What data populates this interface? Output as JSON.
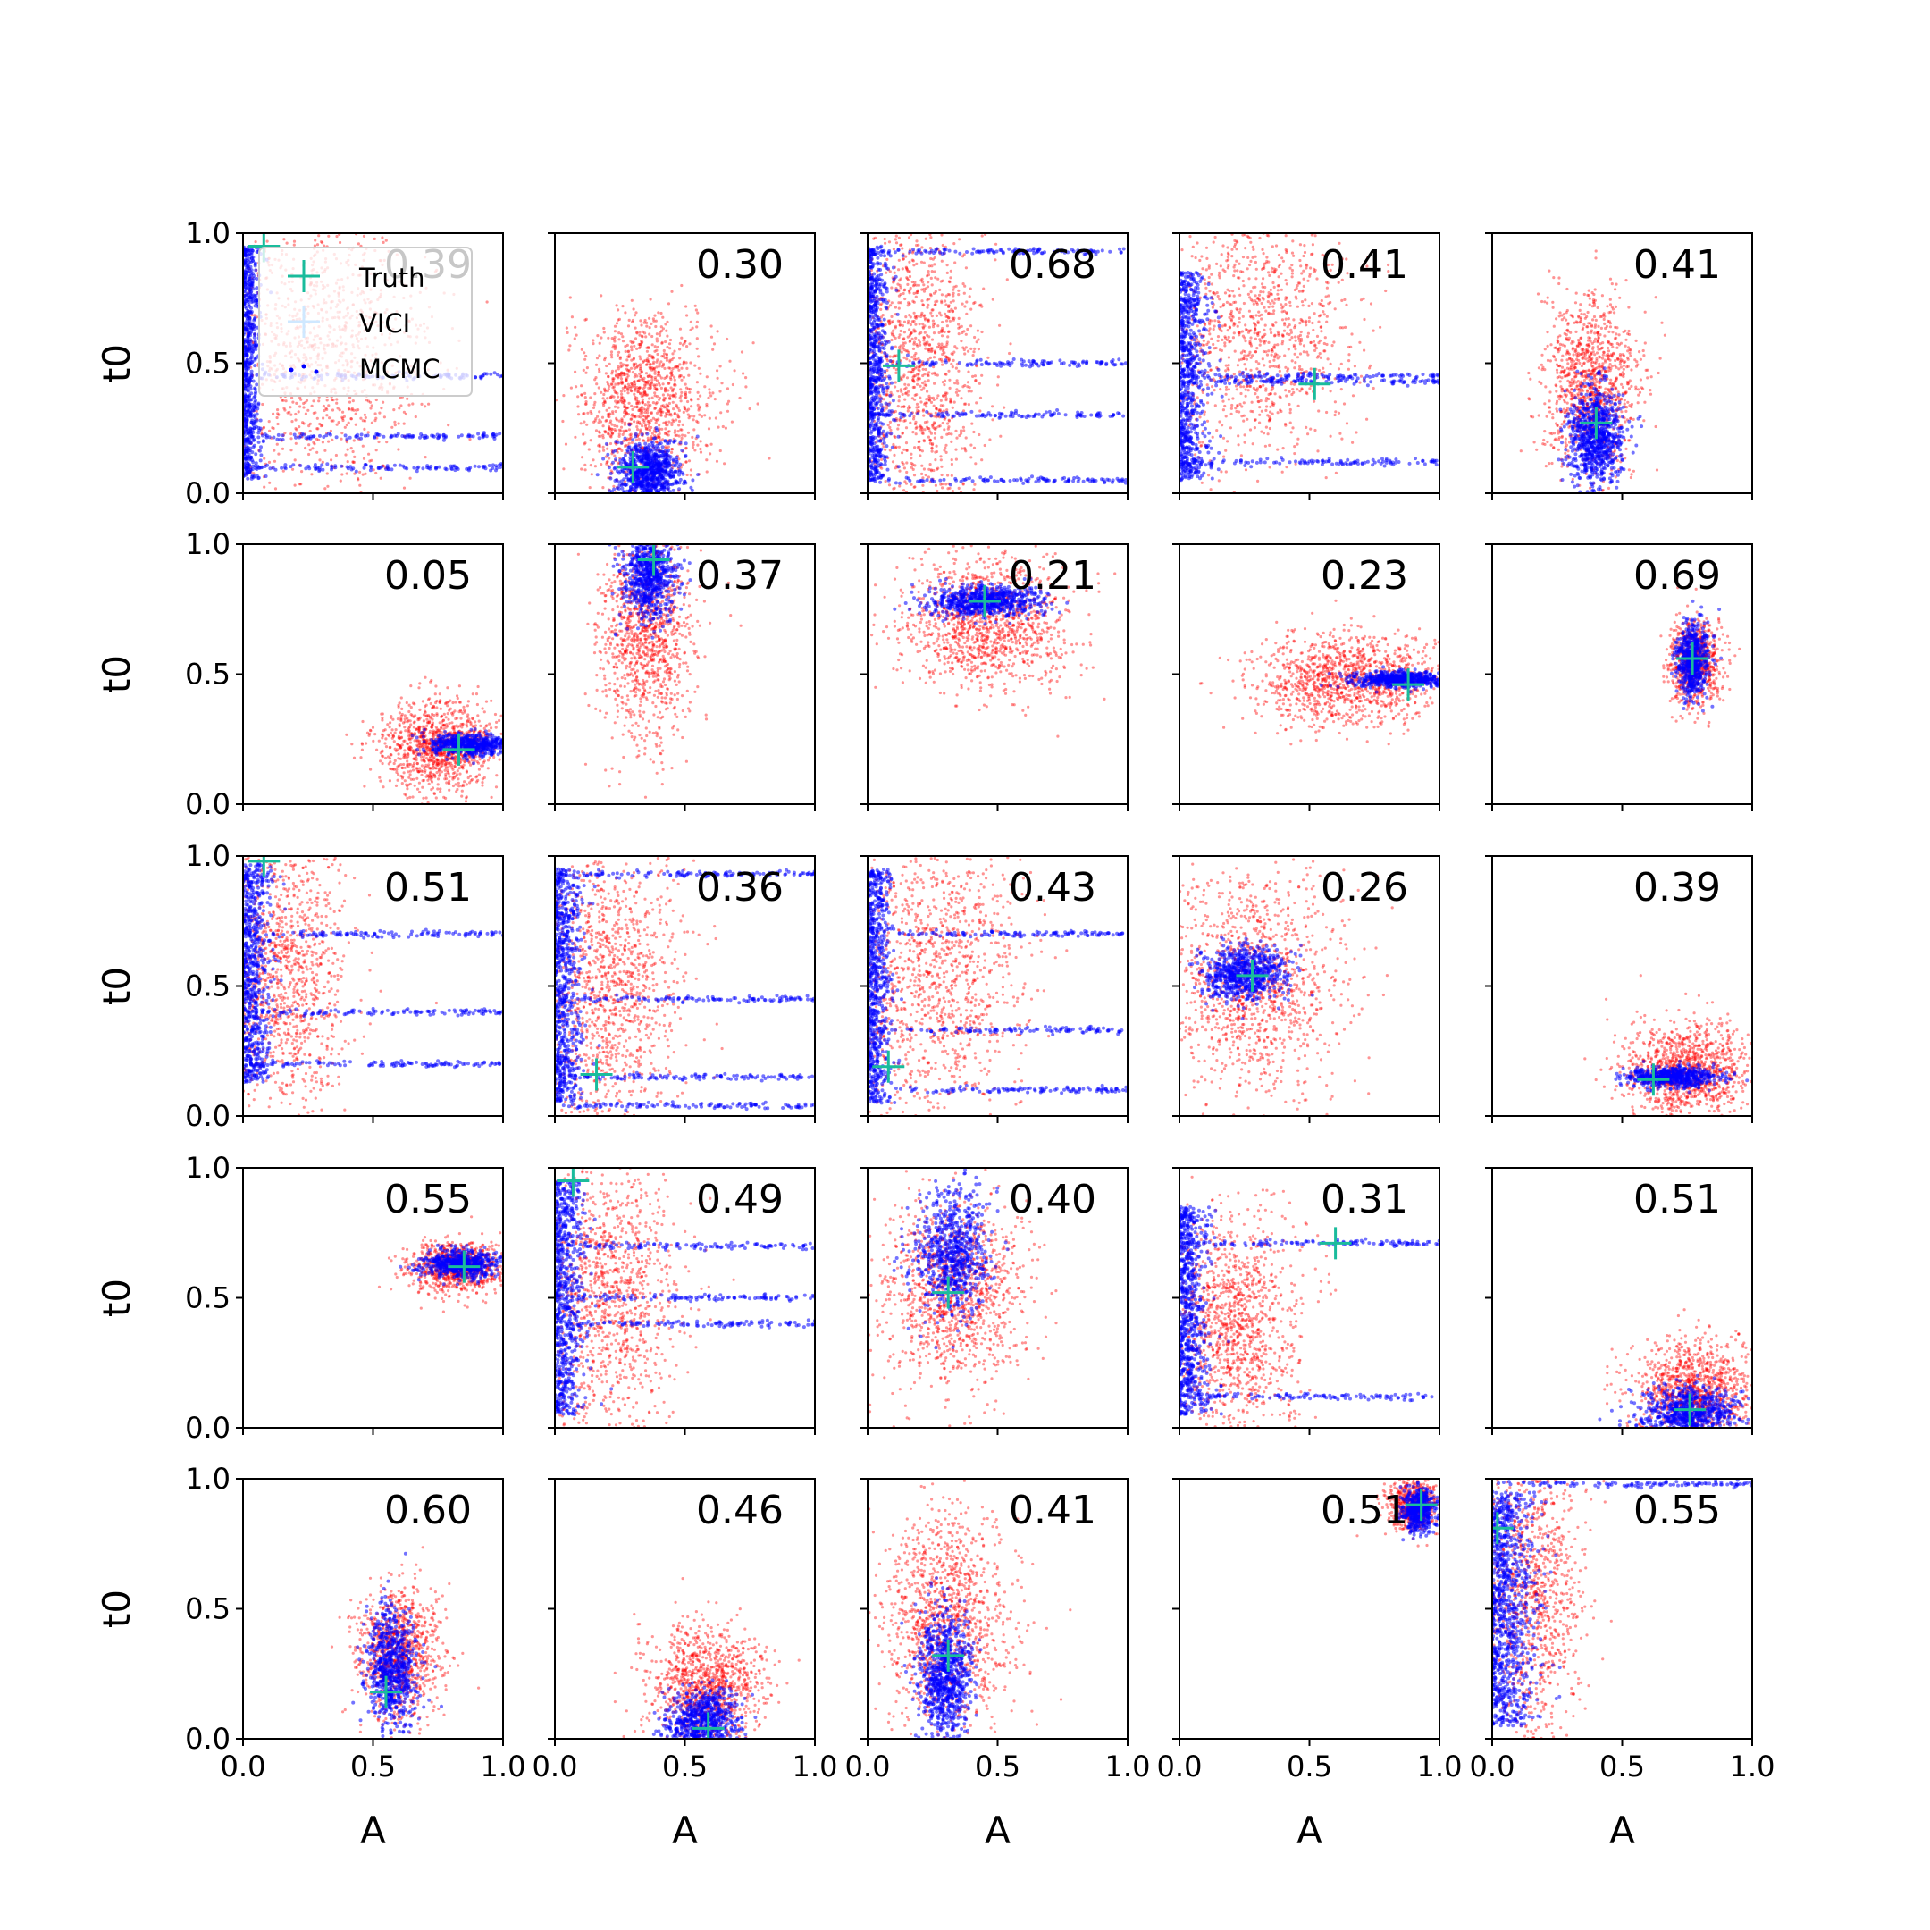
{
  "figure": {
    "rows": 5,
    "cols": 5,
    "xlabel": "A",
    "ylabel": "t0",
    "xlim": [
      0.0,
      1.0
    ],
    "ylim": [
      0.0,
      1.0
    ],
    "xticks": [
      0.0,
      0.5,
      1.0
    ],
    "yticks": [
      0.0,
      0.5,
      1.0
    ],
    "xtick_labels": [
      "0.0",
      "0.5",
      "1.0"
    ],
    "ytick_labels": [
      "0.0",
      "0.5",
      "1.0"
    ],
    "colors": {
      "vici": "#ff0000",
      "mcmc": "#0000ff",
      "truth": "#1abc9c",
      "vici_legend": "#cfe8ff"
    },
    "legend": {
      "location": "top-left of first panel",
      "entries": [
        {
          "label": "Truth",
          "marker": "plus",
          "color": "#1abc9c"
        },
        {
          "label": "VICI",
          "marker": "plus",
          "color": "#cfe8ff"
        },
        {
          "label": "MCMC",
          "marker": "dots",
          "color": "#0000ff"
        }
      ]
    }
  },
  "chart_data": [
    {
      "type": "scatter",
      "overlap": "0.39",
      "truth": [
        0.08,
        0.95
      ],
      "vici": {
        "shape": "gauss",
        "cx": 0.3,
        "cy": 0.55,
        "sx": 0.2,
        "sy": 0.28,
        "n": 1100
      },
      "mcmc": {
        "shape": "strip",
        "cx": 0.04,
        "cy": 0.5,
        "sx": 0.03,
        "sy": 0.45,
        "n": 700,
        "lines": [
          0.1,
          0.45,
          0.22
        ]
      }
    },
    {
      "type": "scatter",
      "overlap": "0.30",
      "truth": [
        0.3,
        0.1
      ],
      "vici": {
        "shape": "gauss",
        "cx": 0.35,
        "cy": 0.35,
        "sx": 0.13,
        "sy": 0.17,
        "n": 1200
      },
      "mcmc": {
        "shape": "gauss",
        "cx": 0.36,
        "cy": 0.08,
        "sx": 0.06,
        "sy": 0.06,
        "n": 800
      }
    },
    {
      "type": "scatter",
      "overlap": "0.68",
      "truth": [
        0.12,
        0.49
      ],
      "vici": {
        "shape": "gauss",
        "cx": 0.2,
        "cy": 0.5,
        "sx": 0.12,
        "sy": 0.32,
        "n": 1200
      },
      "mcmc": {
        "shape": "strip",
        "cx": 0.05,
        "cy": 0.5,
        "sx": 0.04,
        "sy": 0.45,
        "n": 700,
        "lines": [
          0.5,
          0.93,
          0.3,
          0.05
        ]
      }
    },
    {
      "type": "scatter",
      "overlap": "0.41",
      "truth": [
        0.52,
        0.42
      ],
      "vici": {
        "shape": "gauss",
        "cx": 0.3,
        "cy": 0.62,
        "sx": 0.18,
        "sy": 0.25,
        "n": 1100
      },
      "mcmc": {
        "shape": "strip",
        "cx": 0.07,
        "cy": 0.45,
        "sx": 0.05,
        "sy": 0.4,
        "n": 700,
        "lines": [
          0.45,
          0.43,
          0.12
        ]
      }
    },
    {
      "type": "scatter",
      "overlap": "0.41",
      "truth": [
        0.4,
        0.27
      ],
      "vici": {
        "shape": "gauss",
        "cx": 0.38,
        "cy": 0.42,
        "sx": 0.09,
        "sy": 0.17,
        "n": 1100
      },
      "mcmc": {
        "shape": "gauss",
        "cx": 0.4,
        "cy": 0.22,
        "sx": 0.05,
        "sy": 0.1,
        "n": 800
      }
    },
    {
      "type": "scatter",
      "overlap": "0.05",
      "truth": [
        0.83,
        0.21
      ],
      "vici": {
        "shape": "gauss",
        "cx": 0.75,
        "cy": 0.22,
        "sx": 0.11,
        "sy": 0.09,
        "n": 1100
      },
      "mcmc": {
        "shape": "gauss",
        "cx": 0.88,
        "cy": 0.23,
        "sx": 0.08,
        "sy": 0.02,
        "n": 600
      }
    },
    {
      "type": "scatter",
      "overlap": "0.37",
      "truth": [
        0.38,
        0.94
      ],
      "vici": {
        "shape": "gauss",
        "cx": 0.35,
        "cy": 0.65,
        "sx": 0.09,
        "sy": 0.2,
        "n": 1100
      },
      "mcmc": {
        "shape": "gauss",
        "cx": 0.36,
        "cy": 0.88,
        "sx": 0.05,
        "sy": 0.09,
        "n": 700
      }
    },
    {
      "type": "scatter",
      "overlap": "0.21",
      "truth": [
        0.45,
        0.78
      ],
      "vici": {
        "shape": "gauss",
        "cx": 0.45,
        "cy": 0.7,
        "sx": 0.16,
        "sy": 0.13,
        "n": 1200
      },
      "mcmc": {
        "shape": "gauss",
        "cx": 0.45,
        "cy": 0.78,
        "sx": 0.11,
        "sy": 0.03,
        "n": 700
      }
    },
    {
      "type": "scatter",
      "overlap": "0.23",
      "truth": [
        0.88,
        0.46
      ],
      "vici": {
        "shape": "gauss",
        "cx": 0.65,
        "cy": 0.48,
        "sx": 0.18,
        "sy": 0.09,
        "n": 1200
      },
      "mcmc": {
        "shape": "gauss",
        "cx": 0.85,
        "cy": 0.48,
        "sx": 0.09,
        "sy": 0.015,
        "n": 600
      }
    },
    {
      "type": "scatter",
      "overlap": "0.69",
      "truth": [
        0.77,
        0.56
      ],
      "vici": {
        "shape": "gauss",
        "cx": 0.78,
        "cy": 0.54,
        "sx": 0.05,
        "sy": 0.08,
        "n": 800
      },
      "mcmc": {
        "shape": "gauss",
        "cx": 0.77,
        "cy": 0.55,
        "sx": 0.03,
        "sy": 0.07,
        "n": 600
      }
    },
    {
      "type": "scatter",
      "overlap": "0.51",
      "truth": [
        0.08,
        0.98
      ],
      "vici": {
        "shape": "gauss",
        "cx": 0.15,
        "cy": 0.55,
        "sx": 0.13,
        "sy": 0.28,
        "n": 1200
      },
      "mcmc": {
        "shape": "strip",
        "cx": 0.05,
        "cy": 0.55,
        "sx": 0.05,
        "sy": 0.42,
        "n": 700,
        "lines": [
          0.4,
          0.7,
          0.2
        ]
      }
    },
    {
      "type": "scatter",
      "overlap": "0.36",
      "truth": [
        0.16,
        0.16
      ],
      "vici": {
        "shape": "gauss",
        "cx": 0.2,
        "cy": 0.5,
        "sx": 0.14,
        "sy": 0.3,
        "n": 1200
      },
      "mcmc": {
        "shape": "strip",
        "cx": 0.05,
        "cy": 0.5,
        "sx": 0.05,
        "sy": 0.45,
        "n": 700,
        "lines": [
          0.04,
          0.45,
          0.15,
          0.93
        ]
      }
    },
    {
      "type": "scatter",
      "overlap": "0.43",
      "truth": [
        0.08,
        0.19
      ],
      "vici": {
        "shape": "gauss",
        "cx": 0.25,
        "cy": 0.55,
        "sx": 0.18,
        "sy": 0.28,
        "n": 1200
      },
      "mcmc": {
        "shape": "strip",
        "cx": 0.05,
        "cy": 0.5,
        "sx": 0.04,
        "sy": 0.45,
        "n": 700,
        "lines": [
          0.33,
          0.7,
          0.1
        ]
      }
    },
    {
      "type": "scatter",
      "overlap": "0.26",
      "truth": [
        0.28,
        0.54
      ],
      "vici": {
        "shape": "gauss",
        "cx": 0.28,
        "cy": 0.52,
        "sx": 0.17,
        "sy": 0.22,
        "n": 1200
      },
      "mcmc": {
        "shape": "gauss",
        "cx": 0.25,
        "cy": 0.55,
        "sx": 0.08,
        "sy": 0.05,
        "n": 700
      }
    },
    {
      "type": "scatter",
      "overlap": "0.39",
      "truth": [
        0.62,
        0.14
      ],
      "vici": {
        "shape": "gauss",
        "cx": 0.75,
        "cy": 0.18,
        "sx": 0.12,
        "sy": 0.09,
        "n": 1100
      },
      "mcmc": {
        "shape": "gauss",
        "cx": 0.7,
        "cy": 0.15,
        "sx": 0.08,
        "sy": 0.02,
        "n": 600
      }
    },
    {
      "type": "scatter",
      "overlap": "0.55",
      "truth": [
        0.85,
        0.62
      ],
      "vici": {
        "shape": "gauss",
        "cx": 0.82,
        "cy": 0.62,
        "sx": 0.09,
        "sy": 0.05,
        "n": 900
      },
      "mcmc": {
        "shape": "gauss",
        "cx": 0.84,
        "cy": 0.63,
        "sx": 0.07,
        "sy": 0.025,
        "n": 600
      }
    },
    {
      "type": "scatter",
      "overlap": "0.49",
      "truth": [
        0.07,
        0.95
      ],
      "vici": {
        "shape": "gauss",
        "cx": 0.2,
        "cy": 0.5,
        "sx": 0.14,
        "sy": 0.3,
        "n": 1200
      },
      "mcmc": {
        "shape": "strip",
        "cx": 0.05,
        "cy": 0.5,
        "sx": 0.05,
        "sy": 0.45,
        "n": 700,
        "lines": [
          0.5,
          0.7,
          0.4
        ]
      }
    },
    {
      "type": "scatter",
      "overlap": "0.40",
      "truth": [
        0.31,
        0.52
      ],
      "vici": {
        "shape": "gauss",
        "cx": 0.33,
        "cy": 0.52,
        "sx": 0.14,
        "sy": 0.18,
        "n": 1200
      },
      "mcmc": {
        "shape": "gauss",
        "cx": 0.33,
        "cy": 0.68,
        "sx": 0.07,
        "sy": 0.12,
        "n": 700
      }
    },
    {
      "type": "scatter",
      "overlap": "0.31",
      "truth": [
        0.6,
        0.71
      ],
      "vici": {
        "shape": "gauss",
        "cx": 0.2,
        "cy": 0.4,
        "sx": 0.13,
        "sy": 0.22,
        "n": 1200
      },
      "mcmc": {
        "shape": "strip",
        "cx": 0.06,
        "cy": 0.45,
        "sx": 0.05,
        "sy": 0.4,
        "n": 700,
        "lines": [
          0.71,
          0.12
        ]
      }
    },
    {
      "type": "scatter",
      "overlap": "0.51",
      "truth": [
        0.76,
        0.07
      ],
      "vici": {
        "shape": "gauss",
        "cx": 0.78,
        "cy": 0.15,
        "sx": 0.12,
        "sy": 0.1,
        "n": 1100
      },
      "mcmc": {
        "shape": "gauss",
        "cx": 0.76,
        "cy": 0.06,
        "sx": 0.09,
        "sy": 0.05,
        "n": 700
      }
    },
    {
      "type": "scatter",
      "overlap": "0.60",
      "truth": [
        0.55,
        0.18
      ],
      "vici": {
        "shape": "gauss",
        "cx": 0.6,
        "cy": 0.33,
        "sx": 0.08,
        "sy": 0.12,
        "n": 1000
      },
      "mcmc": {
        "shape": "gauss",
        "cx": 0.57,
        "cy": 0.27,
        "sx": 0.05,
        "sy": 0.11,
        "n": 700
      }
    },
    {
      "type": "scatter",
      "overlap": "0.46",
      "truth": [
        0.59,
        0.04
      ],
      "vici": {
        "shape": "gauss",
        "cx": 0.58,
        "cy": 0.2,
        "sx": 0.11,
        "sy": 0.12,
        "n": 1100
      },
      "mcmc": {
        "shape": "gauss",
        "cx": 0.57,
        "cy": 0.06,
        "sx": 0.07,
        "sy": 0.07,
        "n": 700
      }
    },
    {
      "type": "scatter",
      "overlap": "0.41",
      "truth": [
        0.31,
        0.32
      ],
      "vici": {
        "shape": "gauss",
        "cx": 0.3,
        "cy": 0.45,
        "sx": 0.12,
        "sy": 0.22,
        "n": 1200
      },
      "mcmc": {
        "shape": "gauss",
        "cx": 0.3,
        "cy": 0.25,
        "sx": 0.05,
        "sy": 0.12,
        "n": 800
      }
    },
    {
      "type": "scatter",
      "overlap": "0.51",
      "truth": [
        0.93,
        0.9
      ],
      "vici": {
        "shape": "gauss",
        "cx": 0.9,
        "cy": 0.9,
        "sx": 0.05,
        "sy": 0.05,
        "n": 600
      },
      "mcmc": {
        "shape": "gauss",
        "cx": 0.92,
        "cy": 0.88,
        "sx": 0.03,
        "sy": 0.04,
        "n": 500
      }
    },
    {
      "type": "scatter",
      "overlap": "0.55",
      "truth": [
        0.02,
        0.81
      ],
      "vici": {
        "shape": "gauss",
        "cx": 0.15,
        "cy": 0.55,
        "sx": 0.1,
        "sy": 0.3,
        "n": 1100
      },
      "mcmc": {
        "shape": "strip",
        "cx": 0.05,
        "cy": 0.5,
        "sx": 0.08,
        "sy": 0.45,
        "n": 900,
        "lines": [
          0.98
        ]
      }
    }
  ]
}
